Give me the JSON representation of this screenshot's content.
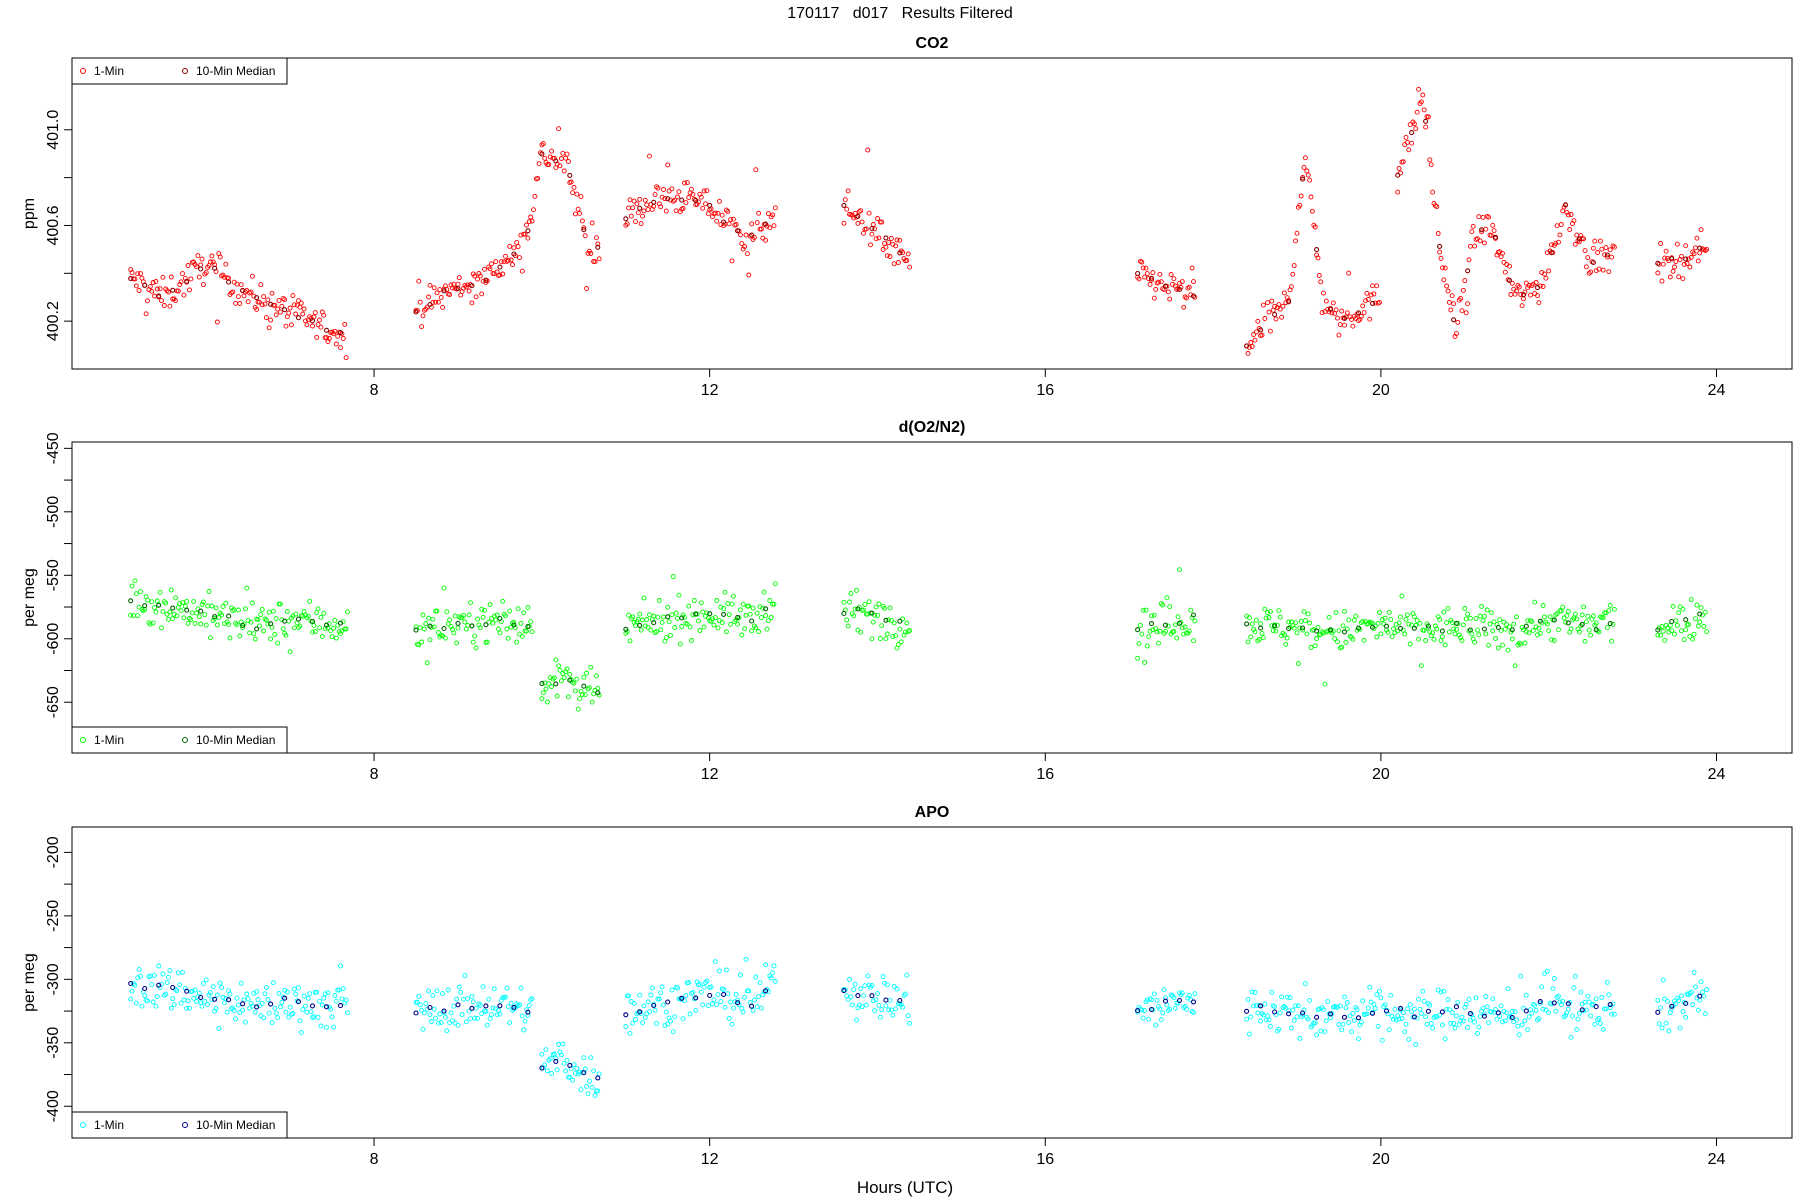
{
  "figure_title": "170117   d017   Results Filtered",
  "xlabel": "Hours (UTC)",
  "colors": {
    "co2_1min": "#ff0000",
    "co2_median": "#8b0000",
    "o2_1min": "#00ff00",
    "o2_median": "#006400",
    "apo_1min": "#00ffff",
    "apo_median": "#00008b"
  },
  "chart_data": [
    {
      "type": "scatter",
      "title": "CO2",
      "ylabel": "ppm",
      "xlim": [
        4.4,
        24.9
      ],
      "ylim": [
        400.0,
        401.3
      ],
      "xticks": [
        8,
        12,
        16,
        20,
        24
      ],
      "xtick_labels": [
        "8",
        "12",
        "16",
        "20",
        "24"
      ],
      "yticks": [
        400.2,
        400.6,
        401.0
      ],
      "ytick_labels": [
        "400.2",
        "400.6",
        "401.0"
      ],
      "legend": {
        "position": "top-left",
        "entries": [
          "1-Min",
          "10-Min Median"
        ]
      },
      "segments": [
        {
          "x": [
            5.1,
            5.5,
            6.0,
            6.5,
            7.0,
            7.3,
            7.7
          ],
          "y": [
            400.38,
            400.3,
            400.44,
            400.31,
            400.24,
            400.19,
            400.12
          ]
        },
        {
          "x": [
            8.5,
            8.9,
            9.3,
            9.8,
            10.0,
            10.3,
            10.6,
            10.7
          ],
          "y": [
            400.24,
            400.33,
            400.37,
            400.52,
            400.9,
            400.85,
            400.45,
            400.55
          ]
        },
        {
          "x": [
            11.0,
            11.3,
            11.7,
            12.0,
            12.4,
            12.8
          ],
          "y": [
            400.63,
            400.7,
            400.72,
            400.68,
            400.55,
            400.62
          ]
        },
        {
          "x": [
            13.6,
            13.9,
            14.2,
            14.4
          ],
          "y": [
            400.68,
            400.6,
            400.5,
            400.43
          ]
        },
        {
          "x": [
            17.1,
            17.4,
            17.8
          ],
          "y": [
            400.4,
            400.35,
            400.3
          ]
        },
        {
          "x": [
            18.4,
            18.7,
            18.9,
            19.1,
            19.3,
            19.5,
            19.8,
            20.0
          ],
          "y": [
            400.1,
            400.22,
            400.28,
            400.9,
            400.3,
            400.2,
            400.26,
            400.3
          ]
        },
        {
          "x": [
            20.2,
            20.5,
            20.7,
            20.9,
            21.1,
            21.3,
            21.6,
            21.9,
            22.2,
            22.5,
            22.8
          ],
          "y": [
            400.8,
            401.15,
            400.5,
            400.15,
            400.55,
            400.6,
            400.3,
            400.35,
            400.68,
            400.45,
            400.48
          ]
        },
        {
          "x": [
            23.3,
            23.6,
            23.9
          ],
          "y": [
            400.45,
            400.46,
            400.52
          ]
        }
      ]
    },
    {
      "type": "scatter",
      "title": "d(O2/N2)",
      "ylabel": "per meg",
      "xlim": [
        4.4,
        24.9
      ],
      "ylim": [
        -690,
        -445
      ],
      "xticks": [
        8,
        12,
        16,
        20,
        24
      ],
      "xtick_labels": [
        "8",
        "12",
        "16",
        "20",
        "24"
      ],
      "yticks": [
        -450,
        -500,
        -550,
        -600,
        -650
      ],
      "ytick_labels": [
        "-450",
        "-500",
        "-550",
        "-600",
        "-650"
      ],
      "legend": {
        "position": "bottom-left",
        "entries": [
          "1-Min",
          "10-Min Median"
        ]
      },
      "segments": [
        {
          "x": [
            5.1,
            5.6,
            6.1,
            6.6,
            7.1,
            7.7
          ],
          "y": [
            -570,
            -575,
            -582,
            -590,
            -585,
            -590
          ]
        },
        {
          "x": [
            8.5,
            9.0,
            9.5,
            9.9
          ],
          "y": [
            -592,
            -588,
            -586,
            -592
          ]
        },
        {
          "x": [
            10.0,
            10.3,
            10.6,
            10.7
          ],
          "y": [
            -635,
            -632,
            -645,
            -640
          ]
        },
        {
          "x": [
            11.0,
            11.5,
            12.0,
            12.5,
            12.8
          ],
          "y": [
            -592,
            -585,
            -580,
            -585,
            -568
          ]
        },
        {
          "x": [
            13.6,
            14.0,
            14.4
          ],
          "y": [
            -578,
            -582,
            -588
          ]
        },
        {
          "x": [
            17.1,
            17.5,
            17.8
          ],
          "y": [
            -592,
            -588,
            -582
          ]
        },
        {
          "x": [
            18.4,
            19.0,
            19.5,
            20.0,
            20.5,
            21.0,
            21.5,
            22.0,
            22.5,
            22.8
          ],
          "y": [
            -588,
            -592,
            -595,
            -590,
            -594,
            -590,
            -595,
            -585,
            -590,
            -585
          ]
        },
        {
          "x": [
            23.3,
            23.6,
            23.9
          ],
          "y": [
            -592,
            -585,
            -580
          ]
        }
      ]
    },
    {
      "type": "scatter",
      "title": "APO",
      "ylabel": "per meg",
      "xlim": [
        4.4,
        24.9
      ],
      "ylim": [
        -425,
        -180
      ],
      "xticks": [
        8,
        12,
        16,
        20,
        24
      ],
      "xtick_labels": [
        "8",
        "12",
        "16",
        "20",
        "24"
      ],
      "yticks": [
        -200,
        -250,
        -300,
        -350,
        -400
      ],
      "ytick_labels": [
        "-200",
        "-250",
        "-300",
        "-350",
        "-400"
      ],
      "legend": {
        "position": "bottom-left",
        "entries": [
          "1-Min",
          "10-Min Median"
        ]
      },
      "segments": [
        {
          "x": [
            5.1,
            5.6,
            6.1,
            6.6,
            7.1,
            7.7
          ],
          "y": [
            -305,
            -308,
            -315,
            -320,
            -318,
            -322
          ]
        },
        {
          "x": [
            8.5,
            9.0,
            9.5,
            9.9
          ],
          "y": [
            -325,
            -322,
            -320,
            -326
          ]
        },
        {
          "x": [
            10.0,
            10.3,
            10.6,
            10.7
          ],
          "y": [
            -368,
            -365,
            -378,
            -375
          ]
        },
        {
          "x": [
            11.0,
            11.5,
            12.0,
            12.5,
            12.8
          ],
          "y": [
            -325,
            -318,
            -312,
            -318,
            -300
          ]
        },
        {
          "x": [
            13.6,
            14.0,
            14.4
          ],
          "y": [
            -310,
            -313,
            -320
          ]
        },
        {
          "x": [
            17.1,
            17.5,
            17.8
          ],
          "y": [
            -325,
            -320,
            -316
          ]
        },
        {
          "x": [
            18.4,
            19.0,
            19.5,
            20.0,
            20.5,
            21.0,
            21.5,
            22.0,
            22.5,
            22.8
          ],
          "y": [
            -322,
            -326,
            -330,
            -325,
            -328,
            -324,
            -330,
            -318,
            -325,
            -318
          ]
        },
        {
          "x": [
            23.3,
            23.6,
            23.9
          ],
          "y": [
            -326,
            -318,
            -315
          ]
        }
      ]
    }
  ]
}
